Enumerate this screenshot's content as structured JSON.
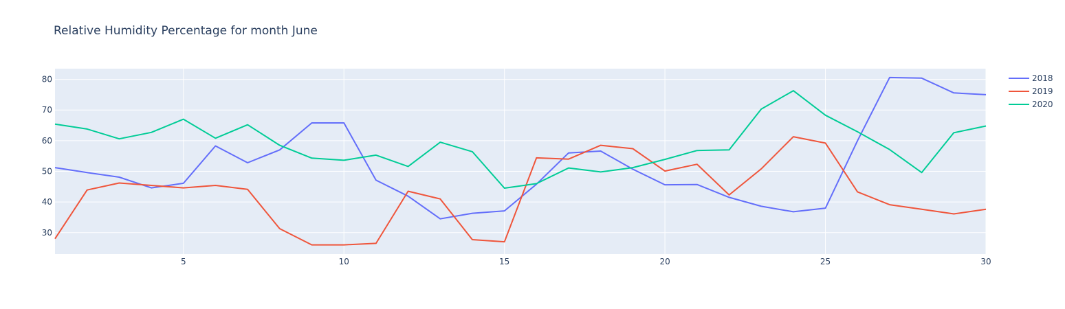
{
  "chart_data": {
    "type": "line",
    "title": "Relative Humidity Percentage for month June",
    "xlabel": "",
    "ylabel": "",
    "xlim": [
      1,
      30
    ],
    "ylim": [
      23,
      83.5
    ],
    "x_ticks": [
      5,
      10,
      15,
      20,
      25,
      30
    ],
    "y_ticks": [
      30,
      40,
      50,
      60,
      70,
      80
    ],
    "grid": true,
    "legend_position": "top-right",
    "x": [
      1,
      2,
      3,
      4,
      5,
      6,
      7,
      8,
      9,
      10,
      11,
      12,
      13,
      14,
      15,
      16,
      17,
      18,
      19,
      20,
      21,
      22,
      23,
      24,
      25,
      26,
      27,
      28,
      29,
      30
    ],
    "series": [
      {
        "name": "2018",
        "color": "#636efa",
        "values": [
          51.2,
          49.6,
          48.1,
          44.6,
          46.1,
          58.3,
          52.8,
          57.0,
          65.8,
          65.8,
          47.1,
          41.9,
          34.5,
          36.3,
          37.1,
          45.8,
          56.0,
          56.6,
          50.7,
          45.6,
          45.7,
          41.5,
          38.6,
          36.8,
          38.0,
          60.0,
          80.6,
          80.4,
          75.6,
          75.0
        ]
      },
      {
        "name": "2019",
        "color": "#ef553b",
        "values": [
          28.0,
          43.9,
          46.2,
          45.4,
          44.6,
          45.4,
          44.1,
          31.3,
          26.0,
          26.0,
          26.5,
          43.5,
          41.0,
          27.7,
          27.0,
          54.4,
          54.0,
          58.5,
          57.4,
          50.1,
          52.3,
          42.3,
          50.8,
          61.3,
          59.2,
          43.3,
          39.1,
          37.6,
          36.1,
          37.6
        ]
      },
      {
        "name": "2020",
        "color": "#00cc96",
        "values": [
          65.4,
          63.8,
          60.6,
          62.7,
          67.0,
          60.8,
          65.2,
          58.5,
          54.3,
          53.6,
          55.3,
          51.6,
          59.5,
          56.4,
          44.5,
          46.0,
          51.1,
          49.8,
          51.2,
          53.9,
          56.8,
          57.0,
          70.3,
          76.3,
          68.3,
          62.9,
          57.1,
          49.6,
          62.6,
          64.8
        ]
      }
    ]
  }
}
